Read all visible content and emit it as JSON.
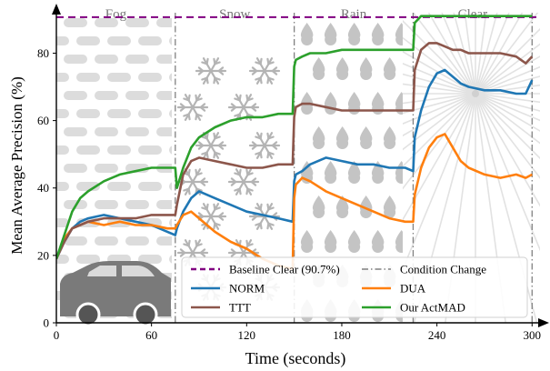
{
  "chart_data": {
    "type": "line",
    "title": "",
    "xlabel": "Time (seconds)",
    "ylabel": "Mean Average Precision (%)",
    "xlim": [
      0,
      305
    ],
    "ylim": [
      0,
      92
    ],
    "xticks": [
      0,
      60,
      120,
      180,
      240,
      300
    ],
    "yticks": [
      0,
      20,
      40,
      60,
      80
    ],
    "grid": false,
    "regions": [
      {
        "label": "Fog",
        "start": 0,
        "end": 75
      },
      {
        "label": "Snow",
        "start": 75,
        "end": 150
      },
      {
        "label": "Rain",
        "start": 150,
        "end": 225
      },
      {
        "label": "Clear",
        "start": 225,
        "end": 300
      }
    ],
    "condition_change_x": [
      75,
      150,
      225,
      300
    ],
    "baseline": {
      "name": "Baseline Clear (90.7%)",
      "value": 90.7,
      "color": "#800080"
    },
    "condition_change_label": "Condition Change",
    "series": [
      {
        "name": "NORM",
        "color": "#1f77b4",
        "x": [
          0,
          5,
          10,
          15,
          20,
          30,
          40,
          50,
          60,
          70,
          75,
          76,
          80,
          85,
          90,
          100,
          110,
          120,
          130,
          140,
          149,
          150,
          151,
          155,
          160,
          170,
          180,
          190,
          200,
          210,
          220,
          225,
          226,
          230,
          235,
          240,
          245,
          250,
          255,
          260,
          270,
          280,
          290,
          296,
          300
        ],
        "y": [
          19,
          24,
          28,
          30,
          31,
          32,
          31,
          30,
          29,
          27,
          26,
          28,
          33,
          37,
          39,
          37,
          35,
          33,
          32,
          31,
          30,
          42,
          44,
          45,
          47,
          49,
          48,
          47,
          47,
          46,
          46,
          45,
          55,
          63,
          70,
          74,
          75,
          73,
          71,
          70,
          69,
          69,
          68,
          68,
          72
        ]
      },
      {
        "name": "DUA",
        "color": "#ff7f0e",
        "x": [
          0,
          5,
          10,
          15,
          20,
          30,
          40,
          50,
          60,
          70,
          75,
          76,
          80,
          85,
          90,
          100,
          110,
          120,
          130,
          140,
          149,
          150,
          151,
          155,
          160,
          170,
          180,
          190,
          200,
          210,
          220,
          225,
          226,
          230,
          235,
          240,
          245,
          250,
          255,
          260,
          270,
          280,
          290,
          296,
          300
        ],
        "y": [
          19,
          25,
          28,
          29,
          30,
          29,
          30,
          29,
          29,
          28,
          28,
          29,
          32,
          33,
          31,
          27,
          24,
          22,
          19,
          17,
          16,
          37,
          41,
          43,
          42,
          39,
          37,
          35,
          33,
          31,
          30,
          30,
          38,
          46,
          52,
          55,
          56,
          52,
          48,
          46,
          44,
          43,
          44,
          43,
          44
        ]
      },
      {
        "name": "TTT",
        "color": "#8c564b",
        "x": [
          0,
          5,
          10,
          15,
          20,
          30,
          40,
          50,
          60,
          70,
          75,
          76,
          80,
          85,
          90,
          100,
          110,
          120,
          130,
          140,
          149,
          150,
          151,
          155,
          160,
          170,
          180,
          190,
          200,
          210,
          220,
          225,
          226,
          230,
          235,
          240,
          245,
          250,
          255,
          260,
          270,
          280,
          290,
          296,
          300
        ],
        "y": [
          19,
          24,
          28,
          29,
          30,
          31,
          31,
          31,
          32,
          32,
          32,
          35,
          44,
          48,
          49,
          48,
          47,
          46,
          46,
          47,
          47,
          61,
          64,
          65,
          65,
          64,
          63,
          63,
          63,
          63,
          63,
          63,
          75,
          81,
          83,
          83,
          82,
          81,
          81,
          80,
          80,
          80,
          79,
          77,
          79
        ]
      },
      {
        "name": "Our ActMAD",
        "color": "#2ca02c",
        "x": [
          0,
          5,
          10,
          15,
          20,
          30,
          40,
          50,
          60,
          70,
          75,
          76,
          80,
          85,
          90,
          100,
          110,
          120,
          130,
          140,
          149,
          150,
          151,
          155,
          160,
          170,
          180,
          190,
          200,
          210,
          220,
          225,
          226,
          230,
          235,
          240,
          250,
          260,
          270,
          280,
          290,
          300
        ],
        "y": [
          19,
          26,
          33,
          37,
          39,
          42,
          44,
          45,
          46,
          46,
          46,
          40,
          46,
          52,
          55,
          58,
          60,
          61,
          61,
          62,
          62,
          76,
          78,
          79,
          80,
          80,
          81,
          81,
          81,
          81,
          81,
          81,
          89,
          91,
          91,
          91,
          91,
          91,
          91,
          91,
          91,
          91
        ]
      }
    ],
    "legend": {
      "placement": "bottom-right",
      "entries": [
        "Baseline Clear (90.7%)",
        "Condition Change",
        "NORM",
        "DUA",
        "TTT",
        "Our ActMAD"
      ]
    },
    "background_icons": {
      "fog": "fog-stripes",
      "snow": "snowflake-icon",
      "rain": "raindrop-icon",
      "clear": "sun-icon",
      "vehicle": "car-icon"
    }
  }
}
